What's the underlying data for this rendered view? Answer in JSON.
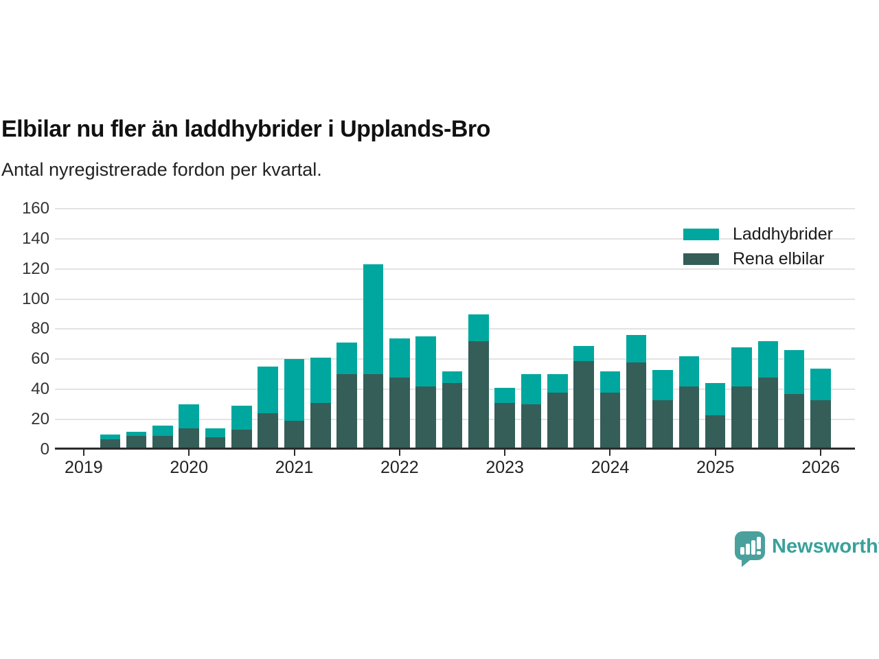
{
  "title": "Elbilar nu fler än laddhybrider i Upplands-Bro",
  "subtitle": "Antal nyregistrerade fordon per kvartal.",
  "legend": {
    "items": [
      {
        "label": "Laddhybrider",
        "color": "#00a79e"
      },
      {
        "label": "Rena elbilar",
        "color": "#355e58"
      }
    ]
  },
  "footer": {
    "brand": "Newsworthy",
    "brand_color": "#38a19a",
    "logo_icon": "bar-chart-speech-bubble-icon"
  },
  "colors": {
    "laddhybrider": "#00a79e",
    "rena_elbilar": "#355e58",
    "gridline": "#e3e3e3",
    "axis": "#2b2b2b"
  },
  "chart_data": {
    "type": "bar",
    "stacked": true,
    "title": "Elbilar nu fler än laddhybrider i Upplands-Bro",
    "subtitle": "Antal nyregistrerade fordon per kvartal.",
    "xlabel": "",
    "ylabel": "",
    "ylim": [
      0,
      160
    ],
    "yticks": [
      0,
      20,
      40,
      60,
      80,
      100,
      120,
      140,
      160
    ],
    "grid": true,
    "legend_position": "top-right",
    "xtick_labels": [
      "2019",
      "2020",
      "2021",
      "2022",
      "2023",
      "2024",
      "2025",
      "2026"
    ],
    "x": [
      "2019 Q2",
      "2019 Q3",
      "2019 Q4",
      "2020 Q1",
      "2020 Q2",
      "2020 Q3",
      "2020 Q4",
      "2021 Q1",
      "2021 Q2",
      "2021 Q3",
      "2021 Q4",
      "2022 Q1",
      "2022 Q2",
      "2022 Q3",
      "2022 Q4",
      "2023 Q1",
      "2023 Q2",
      "2023 Q3",
      "2023 Q4",
      "2024 Q1",
      "2024 Q2",
      "2024 Q3",
      "2024 Q4",
      "2025 Q1",
      "2025 Q2",
      "2025 Q3",
      "2025 Q4",
      "2026 Q1"
    ],
    "series": [
      {
        "name": "Rena elbilar",
        "color": "#355e58",
        "values": [
          7,
          9,
          9,
          14,
          8,
          13,
          24,
          19,
          31,
          50,
          50,
          48,
          42,
          44,
          72,
          31,
          30,
          38,
          59,
          38,
          58,
          33,
          42,
          23,
          42,
          48,
          37,
          33
        ]
      },
      {
        "name": "Laddhybrider",
        "color": "#00a79e",
        "values": [
          3,
          3,
          7,
          16,
          6,
          16,
          31,
          41,
          30,
          21,
          73,
          26,
          33,
          8,
          18,
          10,
          20,
          12,
          10,
          14,
          18,
          20,
          20,
          21,
          26,
          24,
          29,
          21
        ]
      }
    ],
    "totals": [
      10,
      12,
      16,
      30,
      14,
      29,
      55,
      60,
      61,
      71,
      123,
      74,
      75,
      52,
      90,
      41,
      50,
      50,
      69,
      52,
      76,
      53,
      62,
      44,
      68,
      72,
      66,
      54
    ]
  }
}
